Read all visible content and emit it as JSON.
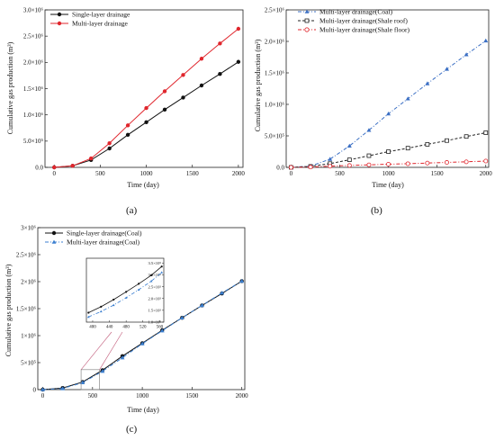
{
  "chart_data": [
    {
      "type": "line",
      "panel": "a",
      "panel_label": "(a)",
      "xlabel": "Time (day)",
      "ylabel": "Cumulative gas production (m³)",
      "xlim": [
        -100,
        2050
      ],
      "ylim": [
        0,
        3000000
      ],
      "xticks": [
        0,
        500,
        1000,
        1500,
        2000
      ],
      "xtick_labels": [
        "0",
        "500",
        "1000",
        "1500",
        "2000"
      ],
      "yticks": [
        0,
        500000,
        1000000,
        1500000,
        2000000,
        2500000,
        3000000
      ],
      "ytick_labels": [
        "0.0",
        "5.0×10⁵",
        "1.0×10⁶",
        "1.5×10⁶",
        "2.0×10⁶",
        "2.5×10⁶",
        "3.0×10⁶"
      ],
      "legend_position": "top-left",
      "x": [
        0,
        200,
        400,
        600,
        800,
        1000,
        1200,
        1400,
        1600,
        1800,
        2000
      ],
      "series": [
        {
          "name": "Single-layer drainage",
          "color": "#111111",
          "marker": "circle-filled",
          "dash": "solid",
          "values": [
            0,
            30000,
            140000,
            360000,
            620000,
            860000,
            1100000,
            1330000,
            1560000,
            1780000,
            2010000
          ]
        },
        {
          "name": "Multi-layer drainage",
          "color": "#e0262d",
          "marker": "circle-filled",
          "dash": "solid",
          "values": [
            0,
            30000,
            170000,
            460000,
            800000,
            1130000,
            1450000,
            1760000,
            2070000,
            2360000,
            2640000
          ]
        }
      ]
    },
    {
      "type": "line",
      "panel": "b",
      "panel_label": "(b)",
      "xlabel": "Time (day)",
      "ylabel": "Cumulative gas production (m³)",
      "xlim": [
        -50,
        2030
      ],
      "ylim": [
        0,
        2500000
      ],
      "xticks": [
        0,
        500,
        1000,
        1500,
        2000
      ],
      "xtick_labels": [
        "0",
        "500",
        "1000",
        "1500",
        "2000"
      ],
      "yticks": [
        0,
        500000,
        1000000,
        1500000,
        2000000,
        2500000
      ],
      "ytick_labels": [
        "0.0",
        "5.0×10⁵",
        "1.0×10⁶",
        "1.5×10⁶",
        "2.0×10⁶",
        "2.5×10⁶"
      ],
      "legend_position": "top-left",
      "x": [
        0,
        200,
        400,
        600,
        800,
        1000,
        1200,
        1400,
        1600,
        1800,
        2000
      ],
      "series": [
        {
          "name": "Multi-layer drainage(Coal)",
          "color": "#3b6fc4",
          "marker": "triangle-filled",
          "dash": "dashdot",
          "values": [
            0,
            20000,
            130000,
            340000,
            590000,
            850000,
            1090000,
            1330000,
            1560000,
            1790000,
            2010000
          ]
        },
        {
          "name": "Multi-layer drainage(Shale roof)",
          "color": "#222222",
          "marker": "square-open",
          "dash": "dash",
          "values": [
            0,
            15000,
            60000,
            120000,
            185000,
            250000,
            305000,
            365000,
            425000,
            490000,
            550000
          ]
        },
        {
          "name": "Multi-layer drainage(Shale floor)",
          "color": "#e0262d",
          "marker": "circle-open",
          "dash": "dashdot",
          "values": [
            0,
            5000,
            18000,
            30000,
            40000,
            50000,
            58000,
            68000,
            78000,
            88000,
            100000
          ]
        }
      ]
    },
    {
      "type": "line",
      "panel": "c",
      "panel_label": "(c)",
      "xlabel": "Time (day)",
      "ylabel": "Cumulative gas production (m³)",
      "xlim": [
        -50,
        2030
      ],
      "ylim": [
        0,
        3000000
      ],
      "xticks": [
        0,
        500,
        1000,
        1500,
        2000
      ],
      "xtick_labels": [
        "0",
        "500",
        "1000",
        "1500",
        "2000"
      ],
      "yticks": [
        0,
        500000,
        1000000,
        1500000,
        2000000,
        2500000,
        3000000
      ],
      "ytick_labels": [
        "0",
        "5×10⁵",
        "1×10⁶",
        "1.5×10⁶",
        "2×10⁶",
        "2.5×10⁶",
        "3×10⁶"
      ],
      "legend_position": "top-left",
      "x": [
        0,
        200,
        400,
        600,
        800,
        1000,
        1200,
        1400,
        1600,
        1800,
        2000
      ],
      "series": [
        {
          "name": "Single-layer drainage(Coal)",
          "color": "#111111",
          "marker": "circle-filled",
          "dash": "solid",
          "values": [
            0,
            30000,
            140000,
            360000,
            620000,
            860000,
            1100000,
            1330000,
            1560000,
            1780000,
            2010000
          ]
        },
        {
          "name": "Multi-layer drainage(Coal)",
          "color": "#3b7fd0",
          "marker": "triangle-filled",
          "dash": "dashdot",
          "values": [
            0,
            20000,
            130000,
            340000,
            590000,
            850000,
            1090000,
            1330000,
            1560000,
            1790000,
            2010000
          ]
        }
      ],
      "inset": {
        "xlim": [
          385,
          570
        ],
        "ylim": [
          100000,
          370000
        ],
        "xticks": [
          400,
          440,
          480,
          520,
          560
        ],
        "xtick_labels": [
          "400",
          "440",
          "480",
          "520",
          "560"
        ],
        "yticks": [
          100000,
          150000,
          200000,
          250000,
          300000,
          350000
        ],
        "ytick_labels": [
          "1.0×10⁵",
          "1.5×10⁵",
          "2.0×10⁵",
          "2.5×10⁵",
          "3.0×10⁵",
          "3.5×10⁵"
        ],
        "x": [
          390,
          420,
          450,
          480,
          510,
          540,
          565
        ],
        "series": [
          {
            "name": "Single-layer drainage(Coal)",
            "values": [
              140000,
              165000,
              195000,
              228000,
              262000,
              298000,
              335000
            ]
          },
          {
            "name": "Multi-layer drainage(Coal)",
            "values": [
              122000,
              145000,
              172000,
              203000,
              237000,
              273000,
              310000
            ]
          }
        ]
      }
    }
  ]
}
